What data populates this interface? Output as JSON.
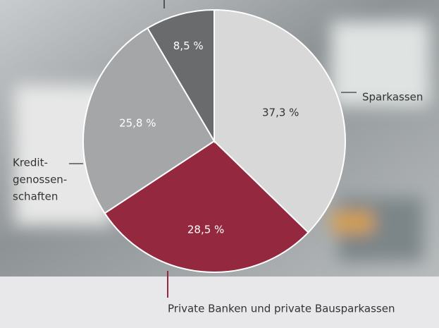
{
  "chart_data": {
    "type": "pie",
    "categories": [
      "Sparkassen",
      "Private Banken und private Bausparkassen",
      [
        "Kredit-",
        "genossen-",
        "schaften"
      ],
      null
    ],
    "values": [
      37.3,
      28.5,
      25.8,
      8.5
    ],
    "value_labels": [
      "37,3 %",
      "28,5 %",
      "25,8 %",
      "8,5 %"
    ],
    "colors": [
      "#d8d8d9",
      "#93283f",
      "#a5a6a8",
      "#6a6b6d"
    ]
  }
}
